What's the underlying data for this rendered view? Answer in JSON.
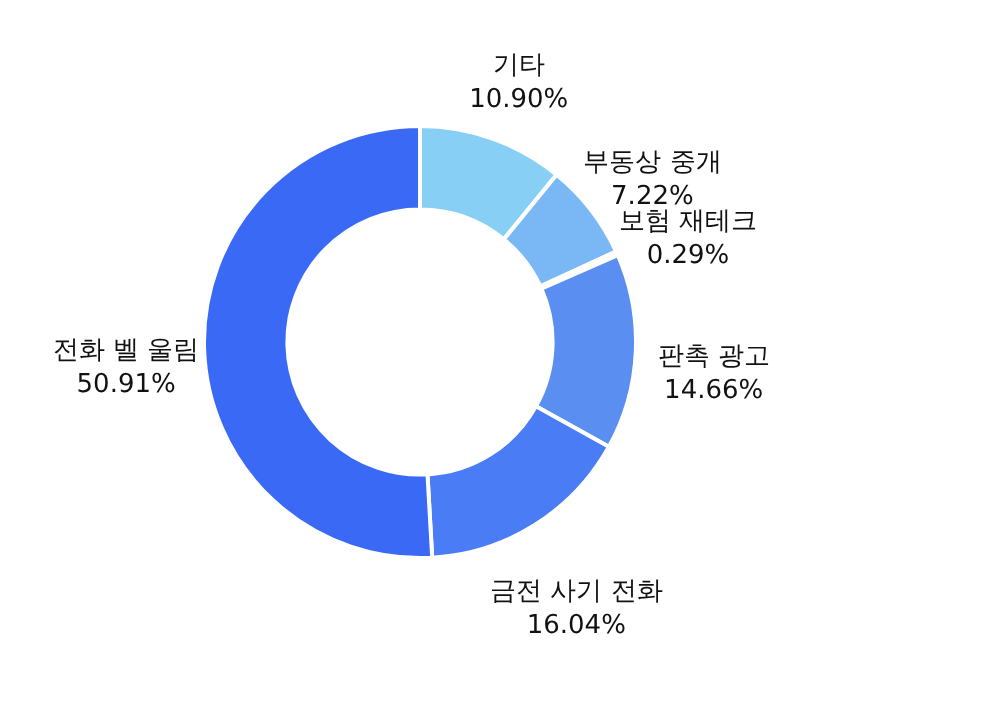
{
  "chart_data": {
    "type": "donut",
    "categories": [
      "기타",
      "부동상 중개",
      "보험 재테크",
      "판촉 광고",
      "금전 사기 전화",
      "전화 벨 울림"
    ],
    "values": [
      10.9,
      7.22,
      0.29,
      14.66,
      16.04,
      50.91
    ],
    "value_labels": [
      "10.90%",
      "7.22%",
      "0.29%",
      "14.66%",
      "16.04%",
      "50.91%"
    ],
    "colors": [
      "#87cff5",
      "#7ab8f5",
      "#5aa0f0",
      "#5a8ef0",
      "#4a7cf5",
      "#3a6af5"
    ],
    "legend": false
  }
}
